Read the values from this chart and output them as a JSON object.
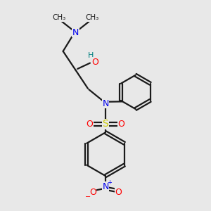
{
  "bg_color": "#e8e8e8",
  "bond_color": "#1a1a1a",
  "atom_colors": {
    "N": "#0000ee",
    "O": "#ff0000",
    "S": "#cccc00",
    "H": "#008080",
    "C": "#1a1a1a"
  },
  "figsize": [
    3.0,
    3.0
  ],
  "dpi": 100
}
